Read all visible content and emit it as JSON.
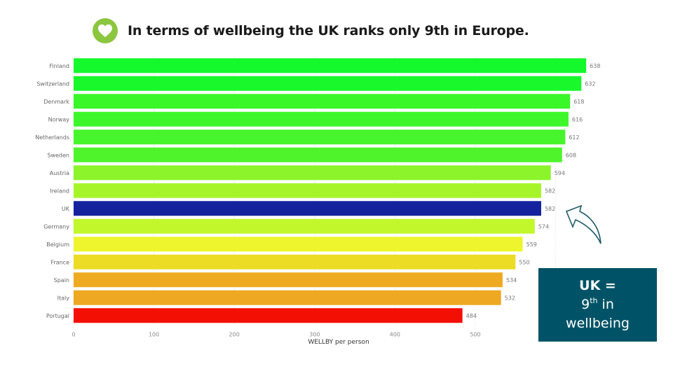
{
  "header": {
    "icon": "heart-icon",
    "title": "In terms of wellbeing the UK ranks only 9th in Europe."
  },
  "callout": {
    "line1": "UK =",
    "line2_num": "9",
    "line2_sup": "th",
    "line2_rest": " in",
    "line3": "wellbeing",
    "background": "#005366",
    "arrow_icon": "curved-arrow-icon"
  },
  "chart_data": {
    "type": "bar",
    "orientation": "horizontal",
    "title": "",
    "xlabel": "WELLBY per person",
    "ylabel": "",
    "xlim": [
      0,
      500
    ],
    "xticks": [
      0,
      100,
      200,
      300,
      400,
      500
    ],
    "grid": true,
    "categories": [
      "Finland",
      "Switzerland",
      "Denmark",
      "Norway",
      "Netherlands",
      "Sweden",
      "Austria",
      "Ireland",
      "UK",
      "Germany",
      "Belgium",
      "France",
      "Spain",
      "Italy",
      "Portugal"
    ],
    "values": [
      638,
      632,
      618,
      616,
      612,
      608,
      594,
      582,
      582,
      574,
      559,
      550,
      534,
      532,
      484
    ],
    "colors": [
      "#14f92c",
      "#18f82b",
      "#3af72a",
      "#3df72a",
      "#46f52b",
      "#4ff42b",
      "#8cf42b",
      "#a6f52b",
      "#14239d",
      "#c2f72b",
      "#eef52c",
      "#ecdc25",
      "#eeab21",
      "#eea821",
      "#f40f04"
    ],
    "data_labels": true
  }
}
